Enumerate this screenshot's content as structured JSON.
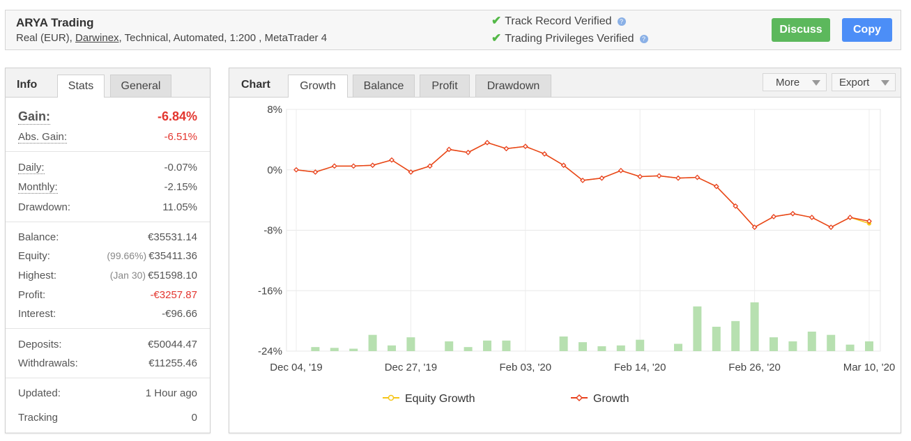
{
  "header": {
    "system_name": "ARYA Trading",
    "desc_prefix": "Real (EUR), ",
    "broker": "Darwinex",
    "desc_suffix": ", Technical, Automated, 1:200 , MetaTrader 4",
    "verifications": [
      "Track Record Verified",
      "Trading Privileges Verified"
    ],
    "discuss_label": "Discuss",
    "copy_label": "Copy"
  },
  "info_panel": {
    "title": "Info",
    "tabs": [
      "Stats",
      "General"
    ],
    "gain_label": "Gain:",
    "gain_value": "-6.84%",
    "abs_gain_label": "Abs. Gain:",
    "abs_gain_value": "-6.51%",
    "daily_label": "Daily:",
    "daily_value": "-0.07%",
    "monthly_label": "Monthly:",
    "monthly_value": "-2.15%",
    "drawdown_label": "Drawdown:",
    "drawdown_value": "11.05%",
    "balance_label": "Balance:",
    "balance_value": "€35531.14",
    "equity_label": "Equity:",
    "equity_pct": "(99.66%)",
    "equity_value": "€35411.36",
    "highest_label": "Highest:",
    "highest_date": "(Jan 30)",
    "highest_value": "€51598.10",
    "profit_label": "Profit:",
    "profit_value": "-€3257.87",
    "interest_label": "Interest:",
    "interest_value": "-€96.66",
    "deposits_label": "Deposits:",
    "deposits_value": "€50044.47",
    "withdrawals_label": "Withdrawals:",
    "withdrawals_value": "€11255.46",
    "updated_label": "Updated:",
    "updated_value": "1 Hour ago",
    "tracking_label": "Tracking",
    "tracking_value": "0"
  },
  "chart_panel": {
    "title": "Chart",
    "tabs": [
      "Growth",
      "Balance",
      "Profit",
      "Drawdown"
    ],
    "more_label": "More",
    "export_label": "Export"
  },
  "colors": {
    "growth": "#e8401c",
    "equity": "#f5c518",
    "bars": "#b7e0b0",
    "discuss": "#5cb85c",
    "copy": "#4c8ef7",
    "negative": "#e3362f"
  },
  "chart_data": {
    "type": "line",
    "x_tick_labels": [
      "Dec 04, '19",
      "Dec 27, '19",
      "Feb 03, '20",
      "Feb 14, '20",
      "Feb 26, '20",
      "Mar 10, '20"
    ],
    "y_tick_labels": [
      "8%",
      "0%",
      "-8%",
      "-16%",
      "-24%"
    ],
    "ylim": [
      -24,
      8
    ],
    "series": [
      {
        "name": "Growth",
        "values": [
          0,
          -0.3,
          0.5,
          0.5,
          0.6,
          1.3,
          -0.3,
          0.5,
          2.7,
          2.3,
          3.6,
          2.8,
          3.1,
          2.1,
          0.6,
          -1.4,
          -1.1,
          -0.1,
          -0.9,
          -0.8,
          -1.1,
          -1.0,
          -2.2,
          -4.8,
          -7.6,
          -6.2,
          -5.8,
          -6.3,
          -7.6,
          -6.3,
          -6.8
        ]
      },
      {
        "name": "Equity Growth",
        "values": [
          0,
          -0.3,
          0.5,
          0.5,
          0.6,
          1.3,
          -0.3,
          0.5,
          2.7,
          2.3,
          3.6,
          2.8,
          3.1,
          2.1,
          0.6,
          -1.4,
          -1.1,
          -0.1,
          -0.9,
          -0.8,
          -1.1,
          -1.0,
          -2.2,
          -4.8,
          -7.6,
          -6.2,
          -5.8,
          -6.3,
          -7.6,
          -6.3,
          -7.1
        ]
      }
    ],
    "bars": [
      0,
      0.5,
      0.4,
      0.3,
      2.0,
      0.7,
      1.7,
      0,
      1.2,
      0.5,
      1.3,
      1.3,
      0,
      0,
      1.8,
      1.1,
      0.6,
      0.7,
      1.4,
      0,
      0.9,
      5.5,
      3.0,
      3.7,
      6.0,
      1.7,
      1.2,
      2.4,
      2.0,
      0.8,
      1.2
    ],
    "legend": [
      "Equity Growth",
      "Growth"
    ],
    "legend_position": "bottom"
  }
}
